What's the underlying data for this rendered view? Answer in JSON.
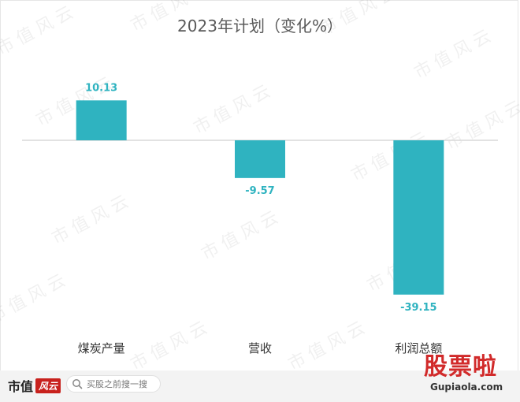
{
  "watermark_text": "市值风云",
  "chart_data": {
    "type": "bar",
    "title": "2023年计划（变化%）",
    "categories": [
      "煤炭产量",
      "营收",
      "利润总额"
    ],
    "values": [
      10.13,
      -9.57,
      -39.15
    ],
    "value_labels": [
      "10.13",
      "-9.57",
      "-39.15"
    ],
    "ylim": [
      -42,
      18
    ],
    "grid": false,
    "legend": "none",
    "bar_color": "#2fb3c0",
    "axis_color": "#d9d9d9"
  },
  "footer": {
    "brand_name": "市值",
    "brand_badge": "风云",
    "search_placeholder": "买股之前搜一搜",
    "site_logo": "股票啦",
    "site_url": "Gupiaola.com"
  }
}
